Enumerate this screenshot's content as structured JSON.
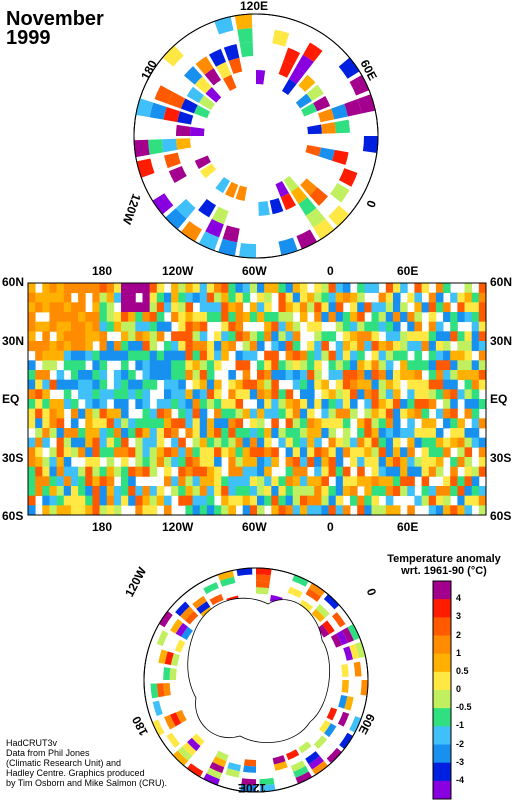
{
  "title": {
    "line1": "November",
    "line2": "1999"
  },
  "north_polar_labels": [
    "120E",
    "60E",
    "0",
    "120W",
    "180"
  ],
  "south_polar_labels": [
    "120W",
    "0",
    "60E",
    "120E",
    "180"
  ],
  "map": {
    "lon_labels": [
      "180",
      "120W",
      "60W",
      "0",
      "60E"
    ],
    "lat_labels": [
      "60N",
      "30N",
      "EQ",
      "30S",
      "60S"
    ]
  },
  "legend": {
    "title_line1": "Temperature anomaly",
    "title_line2": "wrt. 1961-90  (°C)",
    "ticks": [
      "4",
      "3",
      "2",
      "1",
      "0.5",
      "0",
      "-0.5",
      "-1",
      "-2",
      "-3",
      "-4"
    ],
    "colors": [
      "#a3008e",
      "#ff1c00",
      "#ff5a00",
      "#ff8c00",
      "#ffb000",
      "#ffe844",
      "#c0f060",
      "#30e080",
      "#40c0f8",
      "#1890f0",
      "#0020e0",
      "#8800e0"
    ]
  },
  "credits": {
    "line1": "HadCRUT3v",
    "line2": "Data from Phil Jones",
    "line3": "(Climatic Research Unit) and",
    "line4": "Hadley Centre.  Graphics produced",
    "line5": "by Tim Osborn and Mike Salmon (CRU)."
  }
}
